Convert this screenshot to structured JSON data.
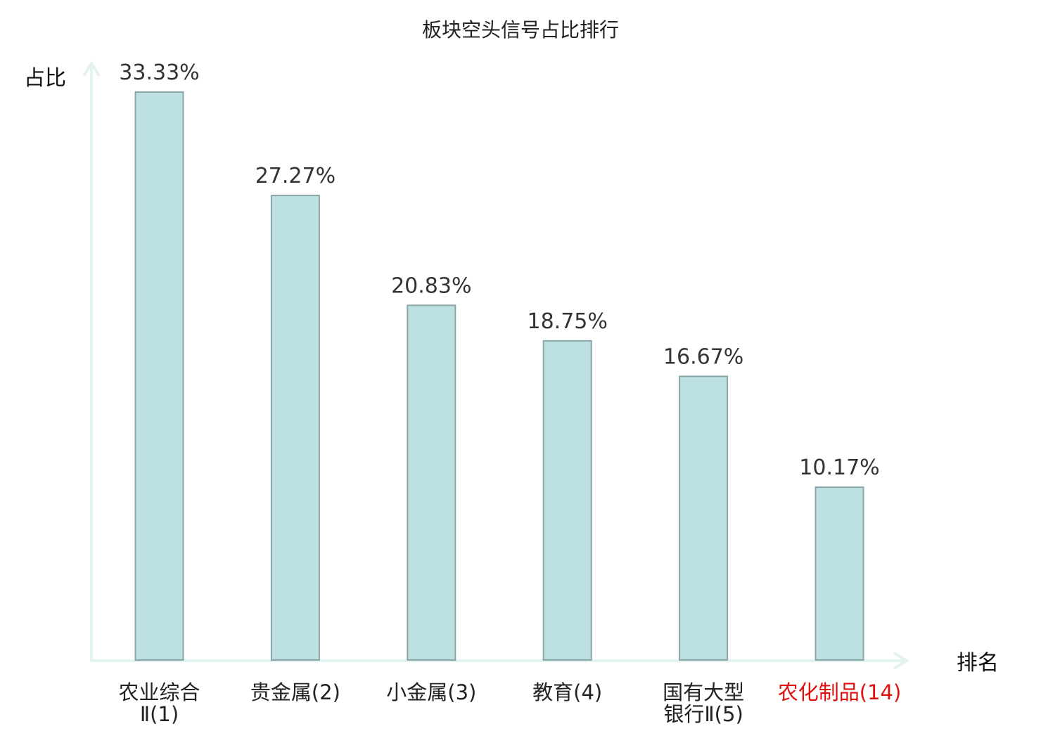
{
  "chart_data": {
    "type": "bar",
    "title": "板块空头信号占比排行",
    "ylabel": "占比",
    "xlabel": "排名",
    "ylim": [
      0,
      35
    ],
    "grid": false,
    "categories": [
      [
        "农业综合",
        "Ⅱ(1)"
      ],
      [
        "贵金属(2)"
      ],
      [
        "小金属(3)"
      ],
      [
        "教育(4)"
      ],
      [
        "国有大型",
        "银行Ⅱ(5)"
      ],
      [
        "农化制品(14)"
      ]
    ],
    "values": [
      33.33,
      27.27,
      20.83,
      18.75,
      16.67,
      10.17
    ],
    "value_labels": [
      "33.33%",
      "27.27%",
      "20.83%",
      "18.75%",
      "16.67%",
      "10.17%"
    ],
    "highlight_index": 5,
    "colors": {
      "bar_fill": "#bde0e3",
      "bar_stroke": "#8aa7a9",
      "axis": "#e3f3f1",
      "highlight_label": "#e01010"
    }
  }
}
